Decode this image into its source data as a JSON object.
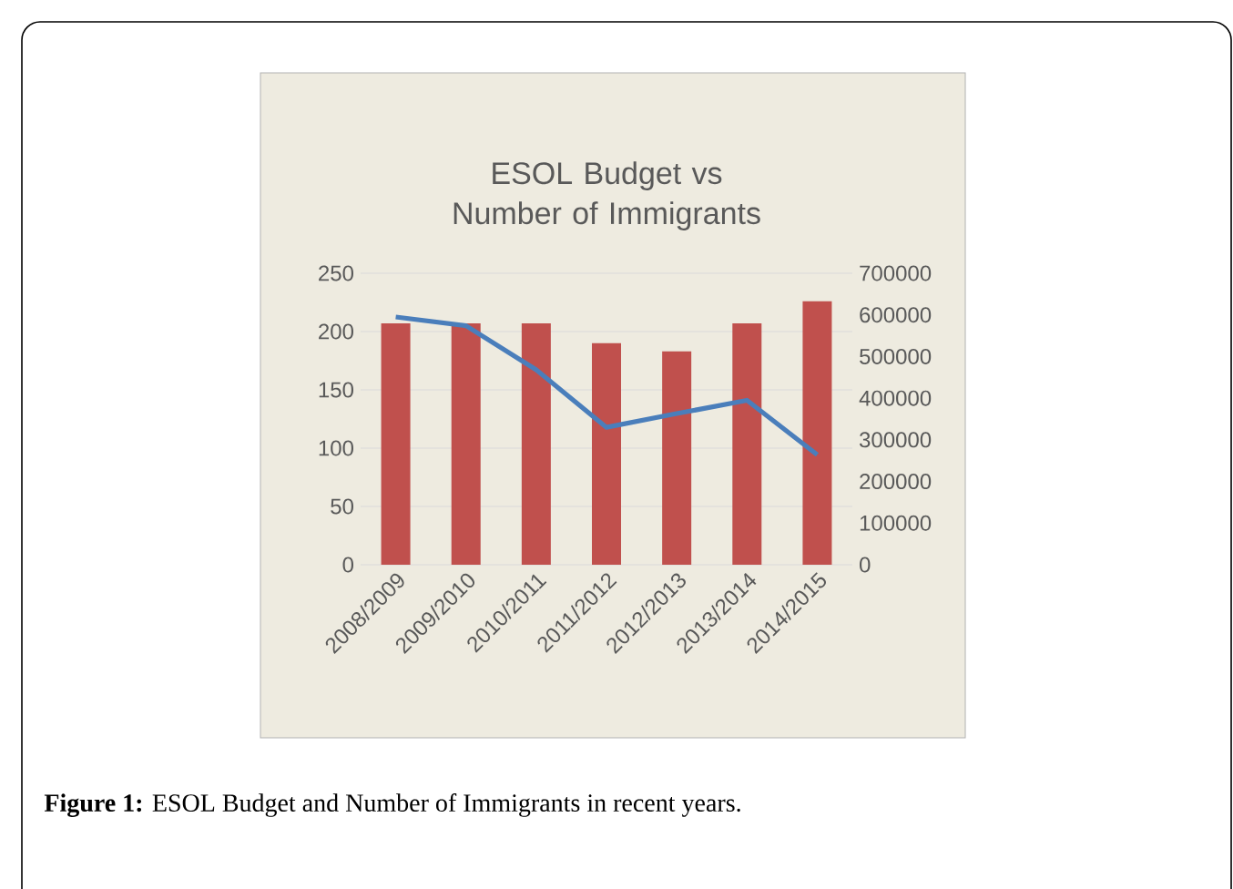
{
  "chart_data": {
    "type": "bar",
    "title": "ESOL Budget vs Number of Immigrants",
    "categories": [
      "2008/2009",
      "2009/2010",
      "2010/2011",
      "2011/2012",
      "2012/2013",
      "2013/2014",
      "2014/2015"
    ],
    "series": [
      {
        "color": "#c0504d",
        "values": [
          207,
          207,
          207,
          190,
          183,
          207,
          226
        ]
      },
      {
        "type": "line",
        "axis": "y2",
        "color": "#4a7ebb",
        "marker": "none",
        "values": [
          595000,
          574000,
          468000,
          330000,
          363000,
          395000,
          264000
        ]
      }
    ],
    "ylim": [
      0,
      250
    ],
    "yticks": [
      0,
      50,
      100,
      150,
      200,
      250
    ],
    "y2lim": [
      0,
      700000
    ],
    "y2ticks": [
      0,
      100000,
      200000,
      300000,
      400000,
      500000,
      600000,
      700000
    ],
    "grid": "y",
    "annotations": [
      "**Figure 1:** ESOL Budget and Number of Immigrants in recent years."
    ]
  }
}
